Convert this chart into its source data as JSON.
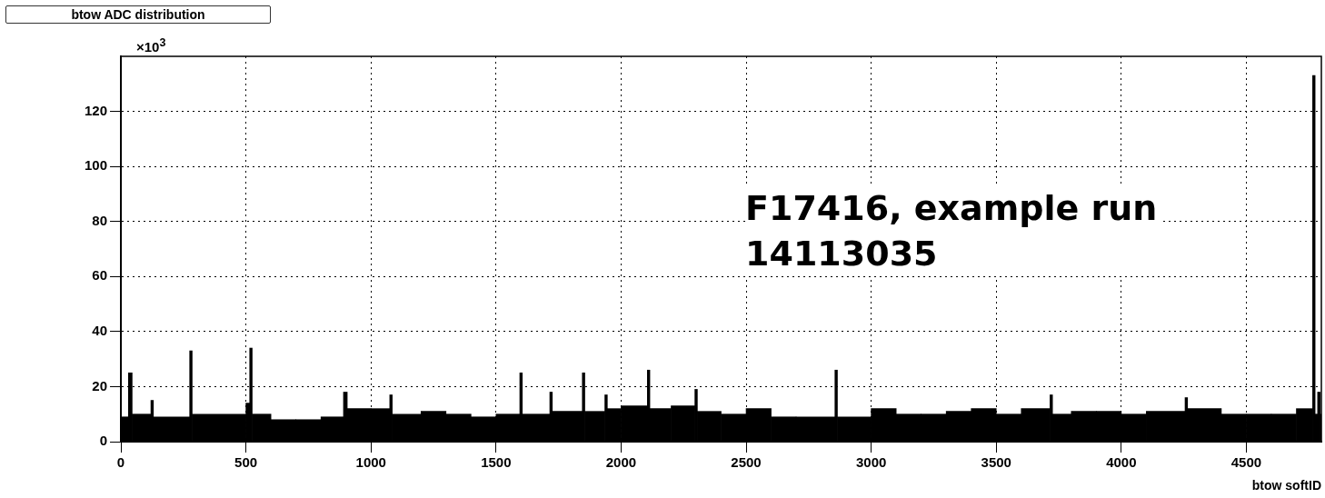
{
  "chart_data": {
    "type": "histogram",
    "title": "btow ADC distribution",
    "xlabel": "btow softID",
    "annotations": [
      "×10$^{3}$",
      "F17416, example run 14113035"
    ],
    "bins": [
      0,
      30,
      45,
      120,
      130,
      275,
      285,
      500,
      515,
      525,
      600,
      700,
      800,
      890,
      905,
      1000,
      1075,
      1085,
      1200,
      1300,
      1400,
      1500,
      1595,
      1605,
      1715,
      1725,
      1845,
      1855,
      1935,
      1945,
      2000,
      2105,
      2115,
      2200,
      2295,
      2305,
      2400,
      2500,
      2600,
      2700,
      2855,
      2865,
      3000,
      3100,
      3200,
      3300,
      3400,
      3500,
      3600,
      3715,
      3725,
      3800,
      3900,
      4000,
      4100,
      4255,
      4265,
      4400,
      4500,
      4600,
      4700,
      4765,
      4775,
      4785,
      4795,
      4800
    ],
    "values": [
      9,
      25,
      10,
      15,
      9,
      33,
      10,
      14,
      34,
      10,
      8,
      8,
      9,
      18,
      12,
      12,
      17,
      10,
      11,
      10,
      9,
      10,
      25,
      10,
      18,
      11,
      25,
      11,
      17,
      12,
      13,
      26,
      12,
      13,
      19,
      11,
      10,
      12,
      9,
      9,
      26,
      9,
      12,
      10,
      10,
      11,
      12,
      10,
      12,
      17,
      10,
      11,
      11,
      10,
      11,
      16,
      12,
      10,
      10,
      10,
      12,
      133,
      10,
      18,
      10
    ],
    "color": "#000000",
    "xlim": [
      0,
      4800
    ],
    "xticks": [
      0,
      500,
      1000,
      1500,
      2000,
      2500,
      3000,
      3500,
      4000,
      4500
    ],
    "ylim": [
      0,
      140
    ],
    "yticks": [
      0,
      20,
      40,
      60,
      80,
      100,
      120
    ],
    "grid": true
  }
}
